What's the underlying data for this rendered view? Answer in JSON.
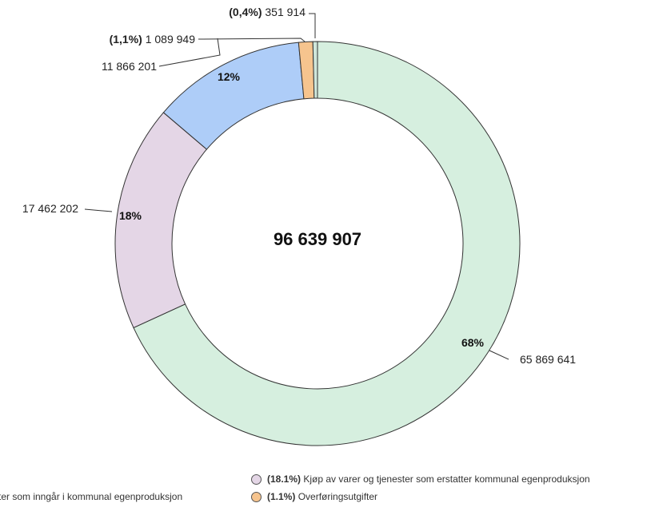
{
  "chart_data": {
    "type": "pie",
    "center_label": "96 639 907",
    "total": 96639907,
    "slices": [
      {
        "label_full": "",
        "value": 65869641,
        "value_label": "65 869 641",
        "pct_label": "68%",
        "color": "#d6efdf"
      },
      {
        "label_full": "Kjøp av varer og tjenester som erstatter kommunal egenproduksjon",
        "value": 17462202,
        "value_label": "17 462 202",
        "pct_label": "18%",
        "color": "#e4d6e6"
      },
      {
        "label_full": "",
        "value": 11866201,
        "value_label": "11 866 201",
        "pct_label": "12%",
        "color": "#aecdf8"
      },
      {
        "label_full": "Overføringsutgifter",
        "value": 1089949,
        "value_label": "1 089 949",
        "pct_paren": "(1,1%)",
        "color": "#f6c48e"
      },
      {
        "label_full": "",
        "value": 351914,
        "value_label": "351 914",
        "pct_paren": "(0,4%)",
        "color": "#cfe6da"
      }
    ],
    "legend": [
      {
        "pct": "(18.1%)",
        "text": "Kjøp av varer og tjenester som erstatter kommunal egenproduksjon",
        "color": "#e4d6e6"
      },
      {
        "pct": "(1.1%)",
        "text": "Overføringsutgifter",
        "color": "#f6c48e"
      },
      {
        "pct": "",
        "text": "ster som inngår i kommunal egenproduksjon",
        "color": ""
      }
    ]
  }
}
